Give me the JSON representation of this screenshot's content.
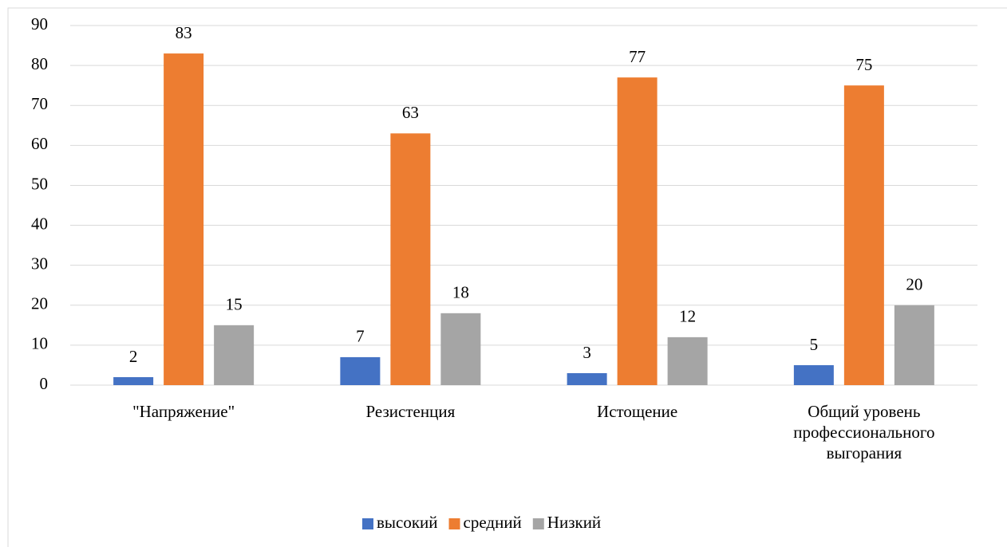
{
  "chart_data": {
    "type": "bar",
    "categories": [
      "\"Напряжение\"",
      "Резистенция",
      "Истощение",
      "Общий уровень профессионального выгорания"
    ],
    "series": [
      {
        "name": "высокий",
        "color": "#4472c4",
        "values": [
          2,
          7,
          3,
          5
        ]
      },
      {
        "name": "средний",
        "color": "#ed7d31",
        "values": [
          83,
          63,
          77,
          75
        ]
      },
      {
        "name": "Низкий",
        "color": "#a5a5a5",
        "values": [
          15,
          18,
          12,
          20
        ]
      }
    ],
    "ylim": [
      0,
      90
    ],
    "yticks": [
      0,
      10,
      20,
      30,
      40,
      50,
      60,
      70,
      80,
      90
    ],
    "grid": true,
    "legend": "bottom"
  }
}
